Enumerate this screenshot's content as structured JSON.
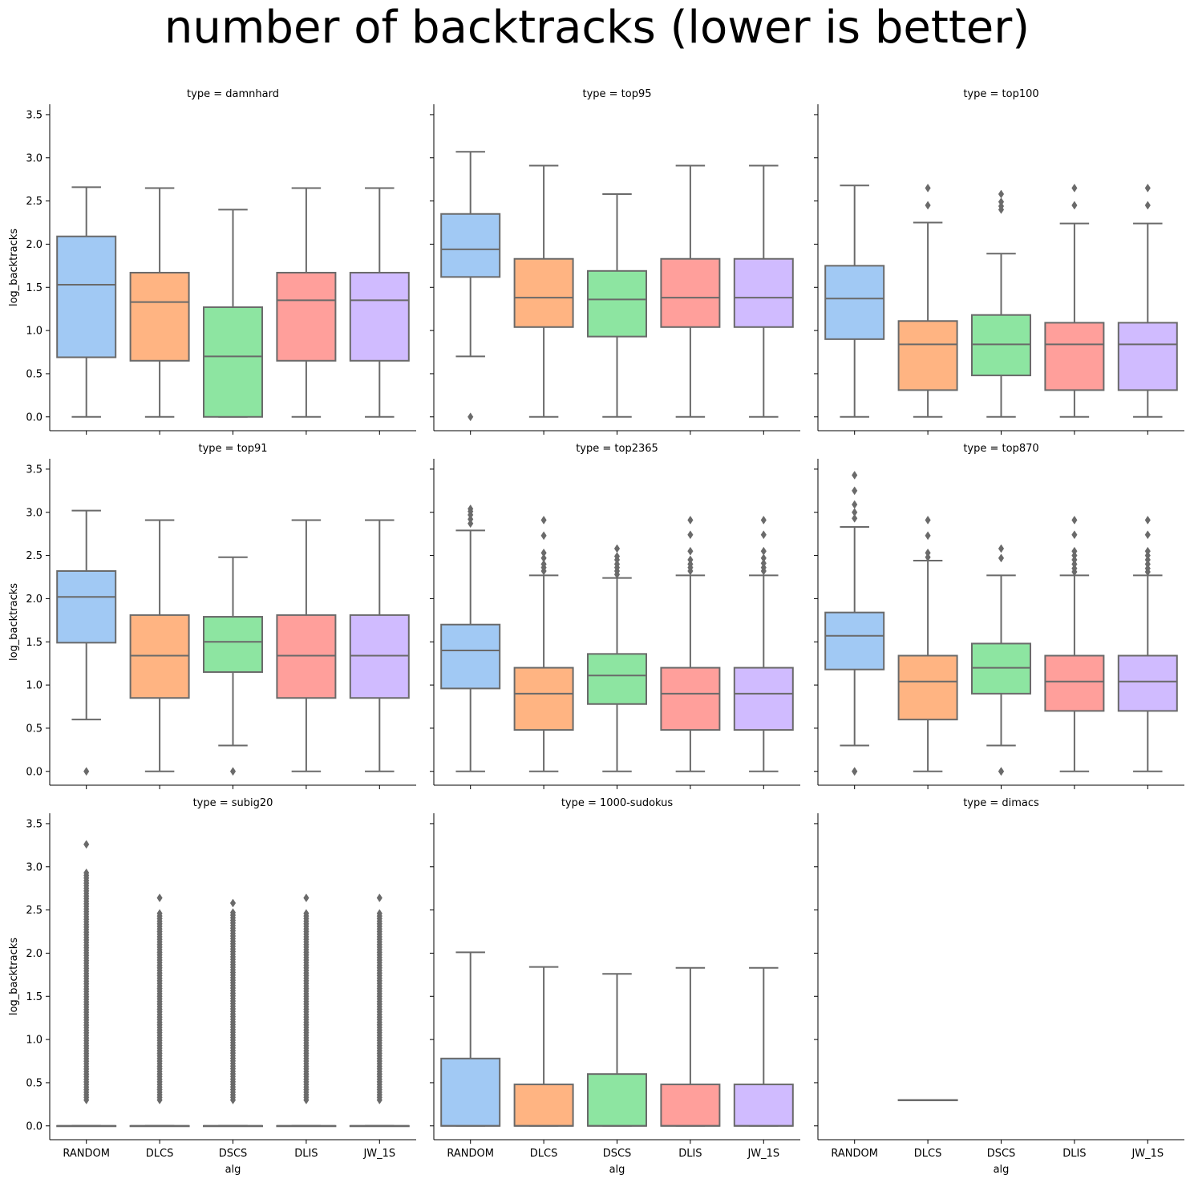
{
  "title": "number of backtracks (lower is better)",
  "chart_data": {
    "type": "box",
    "title": "number of backtracks (lower is better)",
    "xlabel": "alg",
    "ylabel": "log_backtracks",
    "ylim": [
      -0.16,
      3.62
    ],
    "yticks": [
      "0.0",
      "0.5",
      "1.0",
      "1.5",
      "2.0",
      "2.5",
      "3.0",
      "3.5"
    ],
    "categories": [
      "RANDOM",
      "DLCS",
      "DSCS",
      "DLIS",
      "JW_1S"
    ],
    "colors": [
      "#a1c9f4",
      "#ffb482",
      "#8de5a1",
      "#ff9f9b",
      "#d0bbff"
    ],
    "edge_color": "#6a6a6a",
    "grid": false,
    "facets": [
      {
        "label": "type = damnhard",
        "boxes": [
          {
            "q1": 0.69,
            "median": 1.53,
            "q3": 2.09,
            "whislo": 0.0,
            "whishi": 2.66,
            "fliers": []
          },
          {
            "q1": 0.65,
            "median": 1.33,
            "q3": 1.67,
            "whislo": 0.0,
            "whishi": 2.65,
            "fliers": []
          },
          {
            "q1": 0.0,
            "median": 0.7,
            "q3": 1.27,
            "whislo": 0.0,
            "whishi": 2.4,
            "fliers": []
          },
          {
            "q1": 0.65,
            "median": 1.35,
            "q3": 1.67,
            "whislo": 0.0,
            "whishi": 2.65,
            "fliers": []
          },
          {
            "q1": 0.65,
            "median": 1.35,
            "q3": 1.67,
            "whislo": 0.0,
            "whishi": 2.65,
            "fliers": []
          }
        ]
      },
      {
        "label": "type = top95",
        "boxes": [
          {
            "q1": 1.62,
            "median": 1.94,
            "q3": 2.35,
            "whislo": 0.7,
            "whishi": 3.07,
            "fliers": [
              0.0
            ]
          },
          {
            "q1": 1.04,
            "median": 1.38,
            "q3": 1.83,
            "whislo": 0.0,
            "whishi": 2.91,
            "fliers": []
          },
          {
            "q1": 0.93,
            "median": 1.36,
            "q3": 1.69,
            "whislo": 0.0,
            "whishi": 2.58,
            "fliers": []
          },
          {
            "q1": 1.04,
            "median": 1.38,
            "q3": 1.83,
            "whislo": 0.0,
            "whishi": 2.91,
            "fliers": []
          },
          {
            "q1": 1.04,
            "median": 1.38,
            "q3": 1.83,
            "whislo": 0.0,
            "whishi": 2.91,
            "fliers": []
          }
        ]
      },
      {
        "label": "type = top100",
        "boxes": [
          {
            "q1": 0.9,
            "median": 1.37,
            "q3": 1.75,
            "whislo": 0.0,
            "whishi": 2.68,
            "fliers": []
          },
          {
            "q1": 0.31,
            "median": 0.84,
            "q3": 1.11,
            "whislo": 0.0,
            "whishi": 2.25,
            "fliers": [
              2.45,
              2.65
            ]
          },
          {
            "q1": 0.48,
            "median": 0.84,
            "q3": 1.18,
            "whislo": 0.0,
            "whishi": 1.89,
            "fliers": [
              2.4,
              2.44,
              2.49,
              2.58
            ]
          },
          {
            "q1": 0.31,
            "median": 0.84,
            "q3": 1.09,
            "whislo": 0.0,
            "whishi": 2.24,
            "fliers": [
              2.45,
              2.65
            ]
          },
          {
            "q1": 0.31,
            "median": 0.84,
            "q3": 1.09,
            "whislo": 0.0,
            "whishi": 2.24,
            "fliers": [
              2.45,
              2.65
            ]
          }
        ]
      },
      {
        "label": "type = top91",
        "boxes": [
          {
            "q1": 1.49,
            "median": 2.02,
            "q3": 2.32,
            "whislo": 0.6,
            "whishi": 3.02,
            "fliers": [
              0.0
            ]
          },
          {
            "q1": 0.85,
            "median": 1.34,
            "q3": 1.81,
            "whislo": 0.0,
            "whishi": 2.91,
            "fliers": []
          },
          {
            "q1": 1.15,
            "median": 1.5,
            "q3": 1.79,
            "whislo": 0.3,
            "whishi": 2.48,
            "fliers": [
              0.0
            ]
          },
          {
            "q1": 0.85,
            "median": 1.34,
            "q3": 1.81,
            "whislo": 0.0,
            "whishi": 2.91,
            "fliers": []
          },
          {
            "q1": 0.85,
            "median": 1.34,
            "q3": 1.81,
            "whislo": 0.0,
            "whishi": 2.91,
            "fliers": []
          }
        ]
      },
      {
        "label": "type = top2365",
        "boxes": [
          {
            "q1": 0.96,
            "median": 1.4,
            "q3": 1.7,
            "whislo": 0.0,
            "whishi": 2.79,
            "fliers": [
              2.87,
              2.92,
              2.97,
              3.01,
              3.04
            ]
          },
          {
            "q1": 0.48,
            "median": 0.9,
            "q3": 1.2,
            "whislo": 0.0,
            "whishi": 2.27,
            "fliers": [
              2.32,
              2.36,
              2.4,
              2.47,
              2.53,
              2.73,
              2.91
            ]
          },
          {
            "q1": 0.78,
            "median": 1.11,
            "q3": 1.36,
            "whislo": 0.0,
            "whishi": 2.24,
            "fliers": [
              2.28,
              2.32,
              2.36,
              2.4,
              2.45,
              2.49,
              2.58
            ]
          },
          {
            "q1": 0.48,
            "median": 0.9,
            "q3": 1.2,
            "whislo": 0.0,
            "whishi": 2.27,
            "fliers": [
              2.32,
              2.36,
              2.4,
              2.45,
              2.55,
              2.74,
              2.91
            ]
          },
          {
            "q1": 0.48,
            "median": 0.9,
            "q3": 1.2,
            "whislo": 0.0,
            "whishi": 2.27,
            "fliers": [
              2.32,
              2.36,
              2.41,
              2.47,
              2.55,
              2.74,
              2.91
            ]
          }
        ]
      },
      {
        "label": "type = top870",
        "boxes": [
          {
            "q1": 1.18,
            "median": 1.57,
            "q3": 1.84,
            "whislo": 0.3,
            "whishi": 2.83,
            "fliers": [
              0.0,
              0.0,
              2.93,
              3.0,
              3.09,
              3.25,
              3.43
            ]
          },
          {
            "q1": 0.6,
            "median": 1.04,
            "q3": 1.34,
            "whislo": 0.0,
            "whishi": 2.44,
            "fliers": [
              2.48,
              2.53,
              2.73,
              2.91
            ]
          },
          {
            "q1": 0.9,
            "median": 1.2,
            "q3": 1.48,
            "whislo": 0.3,
            "whishi": 2.27,
            "fliers": [
              0.0,
              0.0,
              2.47,
              2.58
            ]
          },
          {
            "q1": 0.7,
            "median": 1.04,
            "q3": 1.34,
            "whislo": 0.0,
            "whishi": 2.27,
            "fliers": [
              2.31,
              2.35,
              2.4,
              2.45,
              2.5,
              2.55,
              2.74,
              2.91
            ]
          },
          {
            "q1": 0.7,
            "median": 1.04,
            "q3": 1.34,
            "whislo": 0.0,
            "whishi": 2.27,
            "fliers": [
              2.31,
              2.35,
              2.4,
              2.45,
              2.5,
              2.55,
              2.74,
              2.91
            ]
          }
        ]
      },
      {
        "label": "type = subig20",
        "boxes": [
          {
            "q1": 0.0,
            "median": 0.0,
            "q3": 0.0,
            "whislo": 0.0,
            "whishi": 0.0,
            "flier_range": [
              0.3,
              2.93
            ],
            "fliers": [
              3.26
            ]
          },
          {
            "q1": 0.0,
            "median": 0.0,
            "q3": 0.0,
            "whislo": 0.0,
            "whishi": 0.0,
            "flier_range": [
              0.3,
              2.46
            ],
            "fliers": [
              2.64
            ]
          },
          {
            "q1": 0.0,
            "median": 0.0,
            "q3": 0.0,
            "whislo": 0.0,
            "whishi": 0.0,
            "flier_range": [
              0.3,
              2.47
            ],
            "fliers": [
              2.58
            ]
          },
          {
            "q1": 0.0,
            "median": 0.0,
            "q3": 0.0,
            "whislo": 0.0,
            "whishi": 0.0,
            "flier_range": [
              0.3,
              2.46
            ],
            "fliers": [
              2.64
            ]
          },
          {
            "q1": 0.0,
            "median": 0.0,
            "q3": 0.0,
            "whislo": 0.0,
            "whishi": 0.0,
            "flier_range": [
              0.3,
              2.46
            ],
            "fliers": [
              2.64
            ]
          }
        ]
      },
      {
        "label": "type = 1000-sudokus",
        "boxes": [
          {
            "q1": 0.0,
            "median": 0.0,
            "q3": 0.78,
            "whislo": 0.0,
            "whishi": 2.01,
            "fliers": []
          },
          {
            "q1": 0.0,
            "median": 0.0,
            "q3": 0.48,
            "whislo": 0.0,
            "whishi": 1.84,
            "fliers": []
          },
          {
            "q1": 0.0,
            "median": 0.0,
            "q3": 0.6,
            "whislo": 0.0,
            "whishi": 1.76,
            "fliers": []
          },
          {
            "q1": 0.0,
            "median": 0.0,
            "q3": 0.48,
            "whislo": 0.0,
            "whishi": 1.83,
            "fliers": []
          },
          {
            "q1": 0.0,
            "median": 0.0,
            "q3": 0.48,
            "whislo": 0.0,
            "whishi": 1.83,
            "fliers": []
          }
        ]
      },
      {
        "label": "type = dimacs",
        "boxes": [
          null,
          {
            "q1": 0.3,
            "median": 0.3,
            "q3": 0.3,
            "whislo": 0.3,
            "whishi": 0.3,
            "fliers": []
          },
          null,
          null,
          null
        ]
      }
    ]
  }
}
